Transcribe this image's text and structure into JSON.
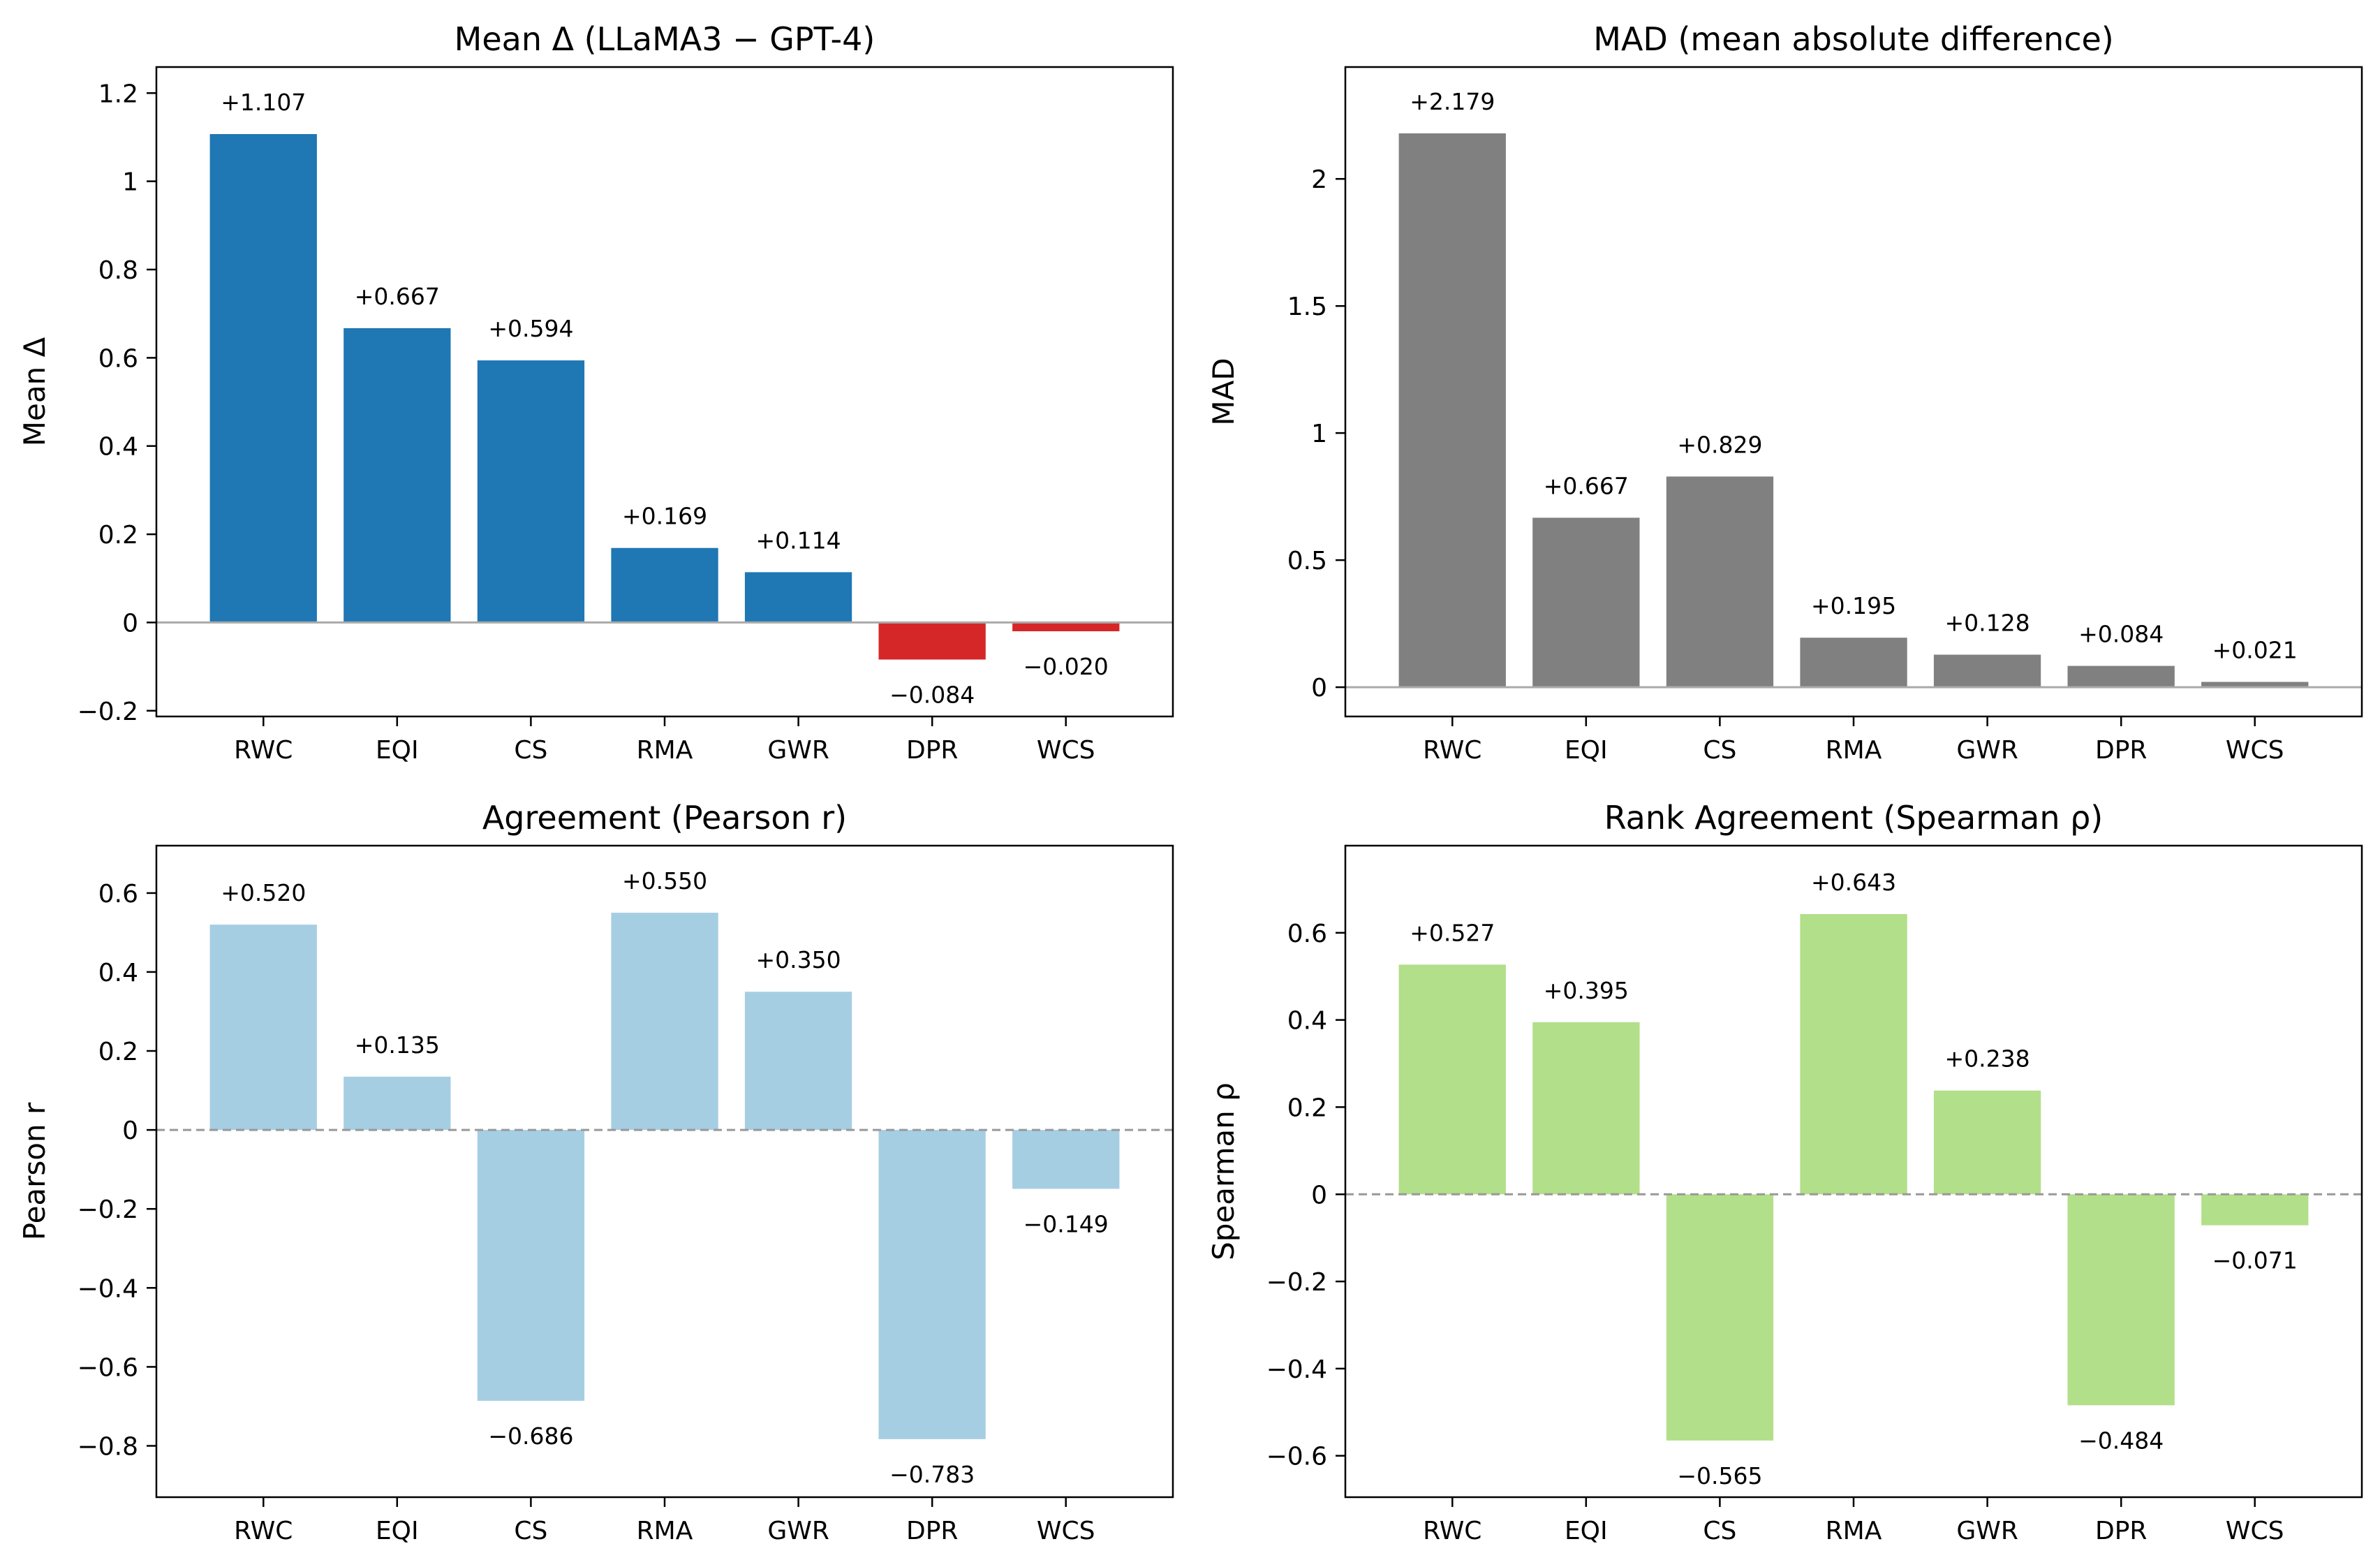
{
  "chart_data": [
    {
      "type": "bar",
      "title": "Mean Δ (LLaMA3 − GPT-4)",
      "xlabel": "",
      "ylabel": "Mean Δ",
      "categories": [
        "RWC",
        "EQI",
        "CS",
        "RMA",
        "GWR",
        "DPR",
        "WCS"
      ],
      "values": [
        1.107,
        0.667,
        0.594,
        0.169,
        0.114,
        -0.084,
        -0.02
      ],
      "data_labels": [
        "+1.107",
        "+0.667",
        "+0.594",
        "+0.169",
        "+0.114",
        "−0.084",
        "−0.020"
      ],
      "ylim": [
        -0.213,
        1.259
      ],
      "yticks": [
        -0.2,
        0,
        0.2,
        0.4,
        0.6,
        0.8,
        1,
        1.2
      ],
      "ytick_labels": [
        "−0.2",
        "0",
        "0.2",
        "0.4",
        "0.6",
        "0.8",
        "1",
        "1.2"
      ],
      "bar_colors": [
        "#1f77b4",
        "#1f77b4",
        "#1f77b4",
        "#1f77b4",
        "#1f77b4",
        "#d62728",
        "#d62728"
      ],
      "zero_line": "solid",
      "zero_line_color": "#aaaaaa"
    },
    {
      "type": "bar",
      "title": "MAD (mean absolute difference)",
      "xlabel": "",
      "ylabel": "MAD",
      "categories": [
        "RWC",
        "EQI",
        "CS",
        "RMA",
        "GWR",
        "DPR",
        "WCS"
      ],
      "values": [
        2.179,
        0.667,
        0.829,
        0.195,
        0.128,
        0.084,
        0.021
      ],
      "data_labels": [
        "+2.179",
        "+0.667",
        "+0.829",
        "+0.195",
        "+0.128",
        "+0.084",
        "+0.021"
      ],
      "ylim": [
        -0.115,
        2.44
      ],
      "yticks": [
        0,
        0.5,
        1,
        1.5,
        2
      ],
      "ytick_labels": [
        "0",
        "0.5",
        "1",
        "1.5",
        "2"
      ],
      "bar_colors": [
        "#808080",
        "#808080",
        "#808080",
        "#808080",
        "#808080",
        "#808080",
        "#808080"
      ],
      "zero_line": "solid",
      "zero_line_color": "#aaaaaa"
    },
    {
      "type": "bar",
      "title": "Agreement (Pearson r)",
      "xlabel": "",
      "ylabel": "Pearson r",
      "categories": [
        "RWC",
        "EQI",
        "CS",
        "RMA",
        "GWR",
        "DPR",
        "WCS"
      ],
      "values": [
        0.52,
        0.135,
        -0.686,
        0.55,
        0.35,
        -0.783,
        -0.149
      ],
      "data_labels": [
        "+0.520",
        "+0.135",
        "−0.686",
        "+0.550",
        "+0.350",
        "−0.783",
        "−0.149"
      ],
      "ylim": [
        -0.93,
        0.72
      ],
      "yticks": [
        -0.8,
        -0.6,
        -0.4,
        -0.2,
        0,
        0.2,
        0.4,
        0.6
      ],
      "ytick_labels": [
        "−0.8",
        "−0.6",
        "−0.4",
        "−0.2",
        "0",
        "0.2",
        "0.4",
        "0.6"
      ],
      "bar_colors": [
        "#a6cee3",
        "#a6cee3",
        "#a6cee3",
        "#a6cee3",
        "#a6cee3",
        "#a6cee3",
        "#a6cee3"
      ],
      "zero_line": "dashed",
      "zero_line_color": "#999999"
    },
    {
      "type": "bar",
      "title": "Rank Agreement (Spearman ρ)",
      "xlabel": "",
      "ylabel": "Spearman ρ",
      "categories": [
        "RWC",
        "EQI",
        "CS",
        "RMA",
        "GWR",
        "DPR",
        "WCS"
      ],
      "values": [
        0.527,
        0.395,
        -0.565,
        0.643,
        0.238,
        -0.484,
        -0.071
      ],
      "data_labels": [
        "+0.527",
        "+0.395",
        "−0.565",
        "+0.643",
        "+0.238",
        "−0.484",
        "−0.071"
      ],
      "ylim": [
        -0.695,
        0.8
      ],
      "yticks": [
        -0.6,
        -0.4,
        -0.2,
        0,
        0.2,
        0.4,
        0.6
      ],
      "ytick_labels": [
        "−0.6",
        "−0.4",
        "−0.2",
        "0",
        "0.2",
        "0.4",
        "0.6"
      ],
      "bar_colors": [
        "#b2df8a",
        "#b2df8a",
        "#b2df8a",
        "#b2df8a",
        "#b2df8a",
        "#b2df8a",
        "#b2df8a"
      ],
      "zero_line": "dashed",
      "zero_line_color": "#999999"
    }
  ]
}
